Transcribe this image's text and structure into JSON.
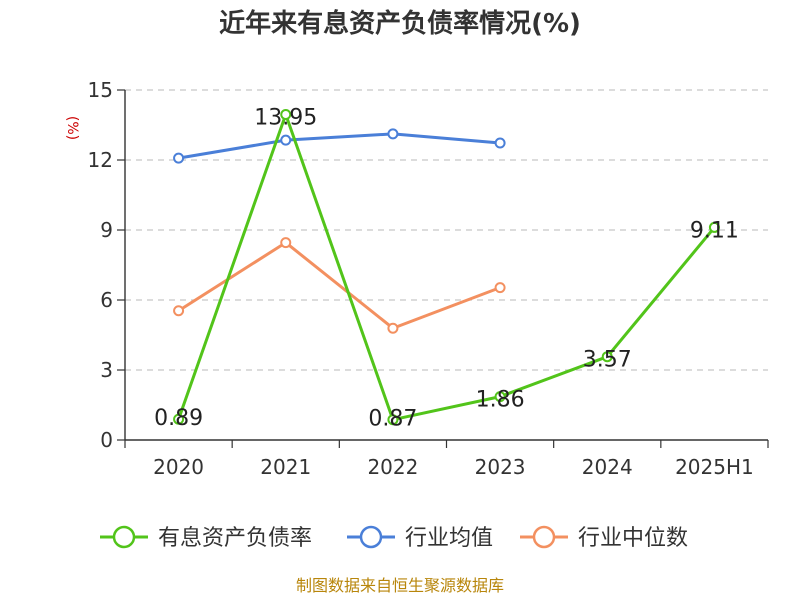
{
  "chart_data": {
    "type": "line",
    "title": "近年来有息资产负债率情况(%)",
    "ylabel": "(%)",
    "categories": [
      "2020",
      "2021",
      "2022",
      "2023",
      "2024",
      "2025H1"
    ],
    "ylim": [
      0,
      15
    ],
    "yticks": [
      0,
      3,
      6,
      9,
      12,
      15
    ],
    "grid": true,
    "legend": "bottom",
    "series": [
      {
        "name": "有息资产负债率",
        "color": "#52c41a",
        "values": [
          0.89,
          13.95,
          0.87,
          1.86,
          3.57,
          9.11
        ],
        "labels": [
          "0.89",
          "13.95",
          "0.87",
          "1.86",
          "3.57",
          "9.11"
        ]
      },
      {
        "name": "行业均值",
        "color": "#4a7fd8",
        "values": [
          12.08,
          12.85,
          13.12,
          12.73,
          null,
          null
        ]
      },
      {
        "name": "行业中位数",
        "color": "#f39060",
        "values": [
          5.54,
          8.46,
          4.79,
          6.53,
          null,
          null
        ]
      }
    ]
  },
  "source": "制图数据来自恒生聚源数据库"
}
